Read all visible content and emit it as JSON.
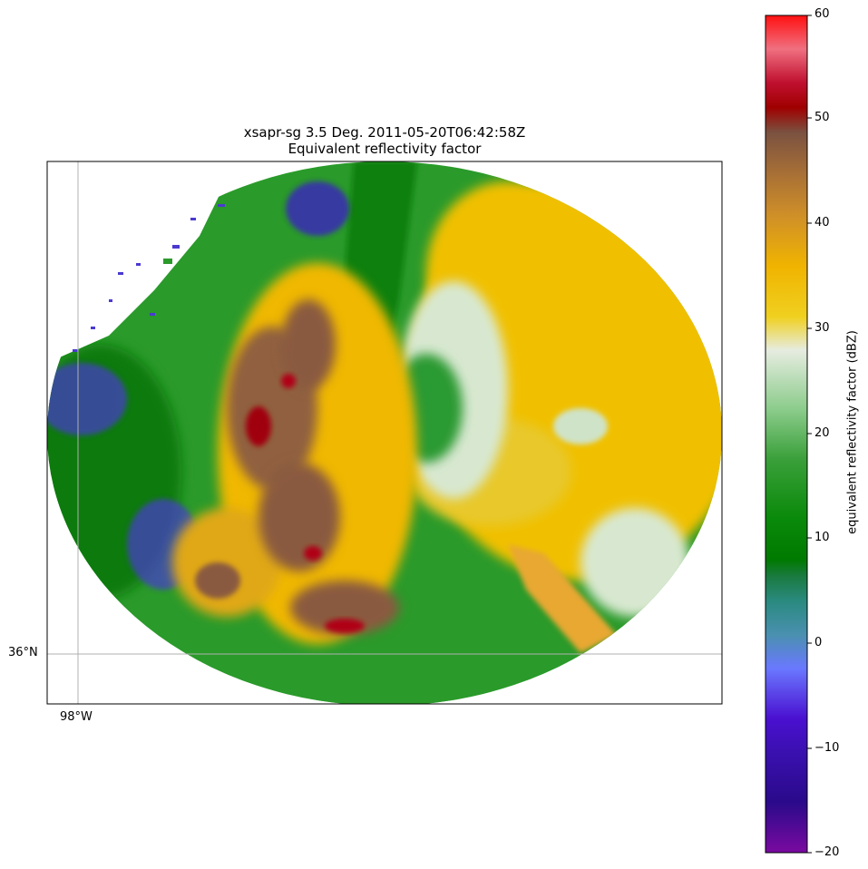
{
  "title": {
    "line1": "xsapr-sg 3.5 Deg. 2011-05-20T06:42:58Z",
    "line2": "Equivalent reflectivity factor"
  },
  "map": {
    "lat_gridline_label": "36°N",
    "lon_gridline_label": "98°W",
    "field": "equivalent reflectivity factor",
    "units": "dBZ"
  },
  "colorbar": {
    "label": "equivalent reflectivity factor (dBZ)",
    "min": -20,
    "max": 60,
    "ticks": [
      "60",
      "50",
      "40",
      "30",
      "20",
      "10",
      "0",
      "−10",
      "−20"
    ],
    "colors": {
      "purple": "#7a0aa0",
      "indigo": "#2a0a8a",
      "violet": "#4a10d0",
      "blue": "#6a78ff",
      "teal": "#2a8a80",
      "dark_green": "#007a00",
      "green": "#2aa02a",
      "light_green": "#8ccc8c",
      "pale": "#e6ece0",
      "yellow": "#f0c800",
      "orange": "#e0a020",
      "tan": "#b07830",
      "brown": "#8a5a40",
      "dark_red": "#a00000",
      "red": "#ee1020",
      "pink": "#f07080"
    }
  }
}
